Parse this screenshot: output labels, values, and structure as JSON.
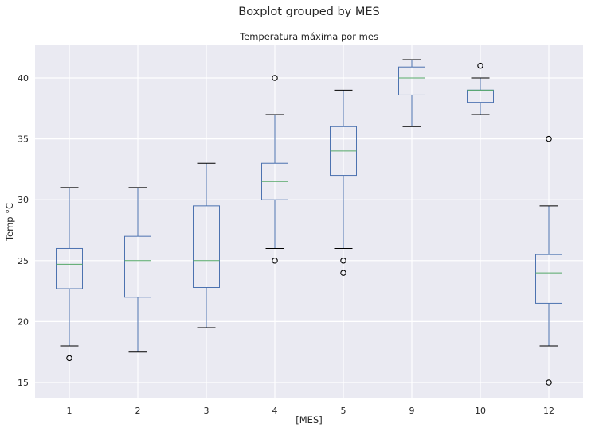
{
  "chart_data": {
    "type": "boxplot",
    "suptitle": "Boxplot grouped by MES",
    "title": "Temperatura máxima por mes",
    "xlabel": "[MES]",
    "ylabel": "Temp °C",
    "ylim": [
      13.6,
      42.8
    ],
    "yticks": [
      15,
      20,
      25,
      30,
      35,
      40
    ],
    "grid": true,
    "colors": {
      "background": "#eaeaf2",
      "grid": "#ffffff",
      "box": "#4c72b0",
      "median": "#55a868",
      "flier": "#000000"
    },
    "categories": [
      "1",
      "2",
      "3",
      "4",
      "5",
      "9",
      "10",
      "12"
    ],
    "boxes": [
      {
        "label": "1",
        "whisker_low": 18,
        "q1": 22.7,
        "median": 24.7,
        "q3": 26,
        "whisker_high": 31,
        "fliers": [
          17
        ]
      },
      {
        "label": "2",
        "whisker_low": 17.5,
        "q1": 22,
        "median": 25,
        "q3": 27,
        "whisker_high": 31,
        "fliers": []
      },
      {
        "label": "3",
        "whisker_low": 19.5,
        "q1": 22.8,
        "median": 25,
        "q3": 29.5,
        "whisker_high": 33,
        "fliers": []
      },
      {
        "label": "4",
        "whisker_low": 26,
        "q1": 30,
        "median": 31.5,
        "q3": 33,
        "whisker_high": 37,
        "fliers": [
          25,
          40
        ]
      },
      {
        "label": "5",
        "whisker_low": 26,
        "q1": 32,
        "median": 34,
        "q3": 36,
        "whisker_high": 39,
        "fliers": [
          25,
          24
        ]
      },
      {
        "label": "9",
        "whisker_low": 36,
        "q1": 38.6,
        "median": 40,
        "q3": 40.9,
        "whisker_high": 41.5,
        "fliers": []
      },
      {
        "label": "10",
        "whisker_low": 37,
        "q1": 38,
        "median": 39,
        "q3": 39,
        "whisker_high": 40,
        "fliers": [
          41
        ]
      },
      {
        "label": "12",
        "whisker_low": 18,
        "q1": 21.5,
        "median": 24,
        "q3": 25.5,
        "whisker_high": 29.5,
        "fliers": [
          35,
          15
        ]
      }
    ]
  }
}
